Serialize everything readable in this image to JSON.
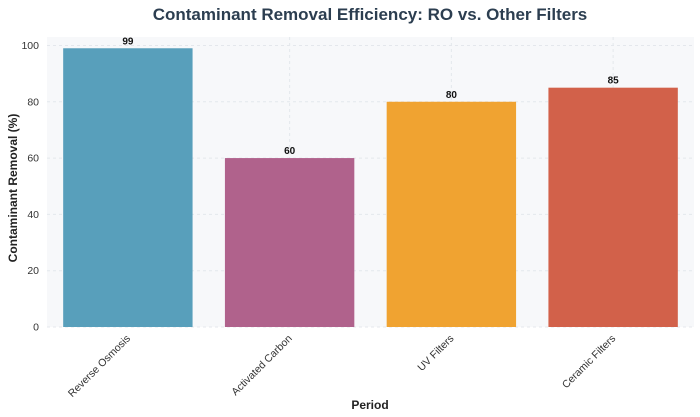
{
  "chart_data": {
    "type": "bar",
    "title": "Contaminant Removal Efficiency: RO vs. Other Filters",
    "xlabel": "Period",
    "ylabel": "Contaminant Removal (%)",
    "categories": [
      "Reverse Osmosis",
      "Activated Carbon",
      "UV Filters",
      "Ceramic Filters"
    ],
    "values": [
      99,
      60,
      80,
      85
    ],
    "data_labels": [
      "99",
      "60",
      "80",
      "85"
    ],
    "colors": [
      "#589fbb",
      "#b0628c",
      "#f0a331",
      "#d2614a"
    ],
    "ylim": [
      0,
      103
    ],
    "yticks": [
      0,
      20,
      40,
      60,
      80,
      100
    ],
    "ytick_labels": [
      "0",
      "20",
      "40",
      "60",
      "80",
      "100"
    ],
    "grid": true,
    "legend": false,
    "plot_background": "#f7f8fa"
  }
}
